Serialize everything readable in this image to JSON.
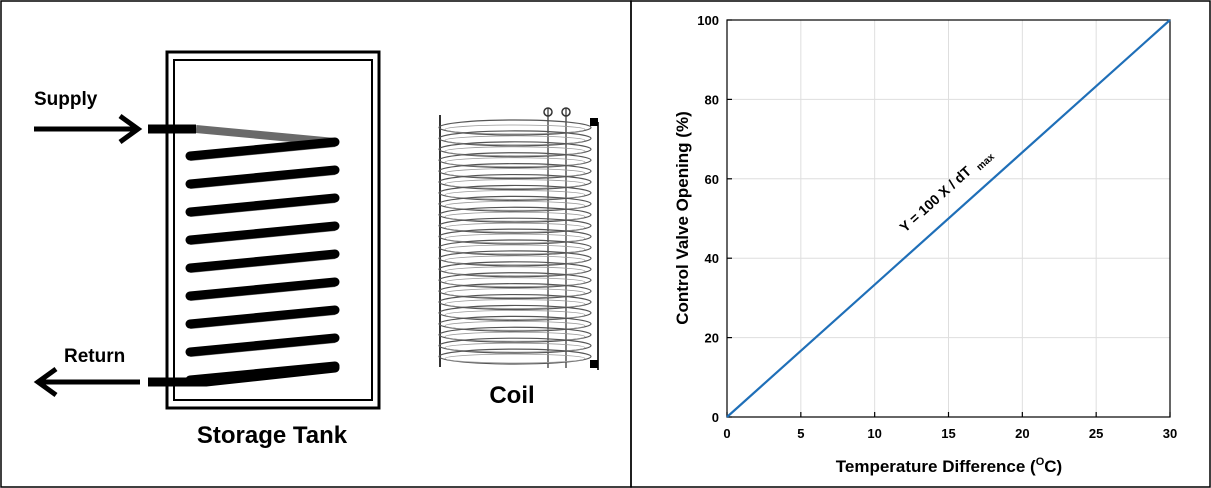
{
  "diagram": {
    "supply_label": "Supply",
    "return_label": "Return",
    "tank_label": "Storage Tank",
    "coil_label": "Coil"
  },
  "chart_data": {
    "type": "line",
    "xlabel": "Temperature Difference (",
    "xlabel_sup": "O",
    "xlabel_tail": "C)",
    "ylabel": "Control Valve Opening (%)",
    "annotation": "Y = 100 X / dT",
    "annotation_sub": "max",
    "xlim": [
      0,
      30
    ],
    "ylim": [
      0,
      100
    ],
    "xticks": [
      0,
      5,
      10,
      15,
      20,
      25,
      30
    ],
    "yticks": [
      0,
      20,
      40,
      60,
      80,
      100
    ],
    "grid": true,
    "series": [
      {
        "color": "#1f6fb8",
        "x": [
          0,
          30
        ],
        "y": [
          0,
          100
        ]
      }
    ]
  }
}
